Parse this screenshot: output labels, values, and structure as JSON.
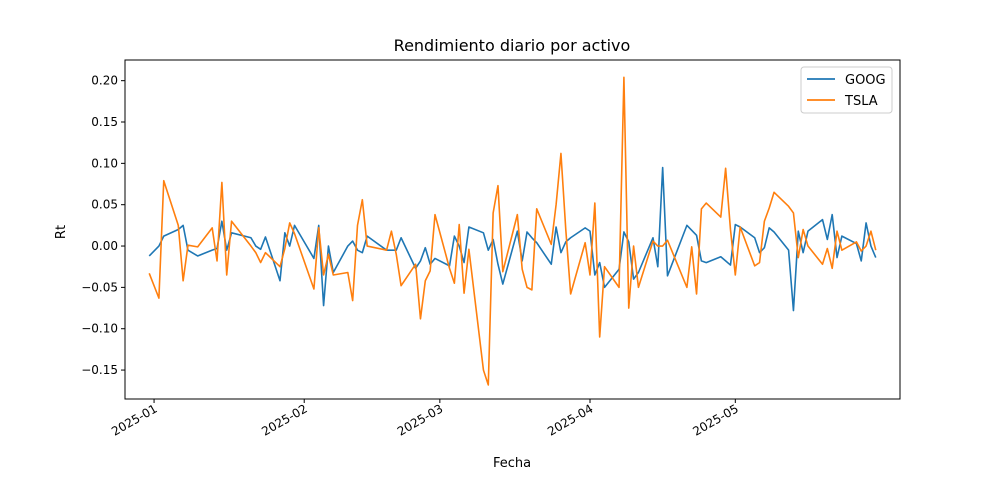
{
  "chart_data": {
    "type": "line",
    "title": "Rendimiento diario por activo",
    "xlabel": "Fecha",
    "ylabel": "Rt",
    "x_ticks": [
      "2025-01",
      "2025-02",
      "2025-03",
      "2025-04",
      "2025-05"
    ],
    "y_ticks": [
      "−0.15",
      "−0.10",
      "−0.05",
      "0.00",
      "0.05",
      "0.10",
      "0.15",
      "0.20"
    ],
    "legend_position": "top-right",
    "grid": false,
    "series": [
      {
        "name": "GOOG",
        "color": "#1f77b4",
        "points": [
          [
            "2024-12-31",
            -0.012
          ],
          [
            "2025-01-02",
            0.0
          ],
          [
            "2025-01-03",
            0.012
          ],
          [
            "2025-01-06",
            0.02
          ],
          [
            "2025-01-07",
            0.025
          ],
          [
            "2025-01-08",
            -0.005
          ],
          [
            "2025-01-10",
            -0.012
          ],
          [
            "2025-01-13",
            -0.005
          ],
          [
            "2025-01-14",
            -0.003
          ],
          [
            "2025-01-15",
            0.03
          ],
          [
            "2025-01-16",
            -0.005
          ],
          [
            "2025-01-17",
            0.016
          ],
          [
            "2025-01-21",
            0.01
          ],
          [
            "2025-01-22",
            0.0
          ],
          [
            "2025-01-23",
            -0.004
          ],
          [
            "2025-01-24",
            0.011
          ],
          [
            "2025-01-27",
            -0.042
          ],
          [
            "2025-01-28",
            0.016
          ],
          [
            "2025-01-29",
            0.0
          ],
          [
            "2025-01-30",
            0.025
          ],
          [
            "2025-02-03",
            -0.015
          ],
          [
            "2025-02-04",
            0.025
          ],
          [
            "2025-02-05",
            -0.072
          ],
          [
            "2025-02-06",
            0.0
          ],
          [
            "2025-02-07",
            -0.032
          ],
          [
            "2025-02-10",
            0.0
          ],
          [
            "2025-02-11",
            0.006
          ],
          [
            "2025-02-12",
            -0.005
          ],
          [
            "2025-02-13",
            -0.008
          ],
          [
            "2025-02-14",
            0.012
          ],
          [
            "2025-02-18",
            -0.005
          ],
          [
            "2025-02-19",
            -0.005
          ],
          [
            "2025-02-20",
            -0.005
          ],
          [
            "2025-02-21",
            0.01
          ],
          [
            "2025-02-24",
            -0.027
          ],
          [
            "2025-02-25",
            -0.018
          ],
          [
            "2025-02-26",
            -0.002
          ],
          [
            "2025-02-27",
            -0.022
          ],
          [
            "2025-02-28",
            -0.015
          ],
          [
            "2025-03-03",
            -0.024
          ],
          [
            "2025-03-04",
            0.012
          ],
          [
            "2025-03-05",
            0.0
          ],
          [
            "2025-03-06",
            -0.02
          ],
          [
            "2025-03-07",
            0.023
          ],
          [
            "2025-03-10",
            0.016
          ],
          [
            "2025-03-11",
            -0.005
          ],
          [
            "2025-03-12",
            0.008
          ],
          [
            "2025-03-13",
            -0.022
          ],
          [
            "2025-03-14",
            -0.046
          ],
          [
            "2025-03-17",
            0.018
          ],
          [
            "2025-03-18",
            -0.018
          ],
          [
            "2025-03-19",
            0.017
          ],
          [
            "2025-03-20",
            0.01
          ],
          [
            "2025-03-21",
            0.004
          ],
          [
            "2025-03-24",
            -0.022
          ],
          [
            "2025-03-25",
            0.023
          ],
          [
            "2025-03-26",
            -0.008
          ],
          [
            "2025-03-27",
            0.005
          ],
          [
            "2025-03-28",
            0.01
          ],
          [
            "2025-03-31",
            0.022
          ],
          [
            "2025-04-01",
            0.018
          ],
          [
            "2025-04-02",
            -0.035
          ],
          [
            "2025-04-03",
            -0.02
          ],
          [
            "2025-04-04",
            -0.05
          ],
          [
            "2025-04-07",
            -0.028
          ],
          [
            "2025-04-08",
            0.017
          ],
          [
            "2025-04-09",
            0.005
          ],
          [
            "2025-04-10",
            -0.04
          ],
          [
            "2025-04-11",
            -0.032
          ],
          [
            "2025-04-14",
            0.01
          ],
          [
            "2025-04-15",
            -0.025
          ],
          [
            "2025-04-16",
            0.095
          ],
          [
            "2025-04-17",
            -0.036
          ],
          [
            "2025-04-21",
            0.025
          ],
          [
            "2025-04-22",
            0.019
          ],
          [
            "2025-04-23",
            0.013
          ],
          [
            "2025-04-24",
            -0.018
          ],
          [
            "2025-04-25",
            -0.02
          ],
          [
            "2025-04-28",
            -0.013
          ],
          [
            "2025-04-29",
            -0.018
          ],
          [
            "2025-04-30",
            -0.023
          ],
          [
            "2025-05-01",
            0.026
          ],
          [
            "2025-05-02",
            0.023
          ],
          [
            "2025-05-05",
            0.01
          ],
          [
            "2025-05-06",
            -0.008
          ],
          [
            "2025-05-07",
            -0.002
          ],
          [
            "2025-05-08",
            0.022
          ],
          [
            "2025-05-09",
            0.017
          ],
          [
            "2025-05-12",
            -0.005
          ],
          [
            "2025-05-13",
            -0.078
          ],
          [
            "2025-05-14",
            0.018
          ],
          [
            "2025-05-15",
            -0.008
          ],
          [
            "2025-05-16",
            0.018
          ],
          [
            "2025-05-19",
            0.032
          ],
          [
            "2025-05-20",
            0.008
          ],
          [
            "2025-05-21",
            0.038
          ],
          [
            "2025-05-22",
            -0.014
          ],
          [
            "2025-05-23",
            0.012
          ],
          [
            "2025-05-26",
            0.003
          ],
          [
            "2025-05-27",
            -0.018
          ],
          [
            "2025-05-28",
            0.028
          ],
          [
            "2025-05-29",
            0.0
          ],
          [
            "2025-05-30",
            -0.014
          ]
        ]
      },
      {
        "name": "TSLA",
        "color": "#ff7f0e",
        "points": [
          [
            "2024-12-31",
            -0.033
          ],
          [
            "2025-01-02",
            -0.063
          ],
          [
            "2025-01-03",
            0.079
          ],
          [
            "2025-01-06",
            0.025
          ],
          [
            "2025-01-07",
            -0.042
          ],
          [
            "2025-01-08",
            0.001
          ],
          [
            "2025-01-10",
            -0.001
          ],
          [
            "2025-01-13",
            0.022
          ],
          [
            "2025-01-14",
            -0.018
          ],
          [
            "2025-01-15",
            0.077
          ],
          [
            "2025-01-16",
            -0.035
          ],
          [
            "2025-01-17",
            0.03
          ],
          [
            "2025-01-21",
            0.0
          ],
          [
            "2025-01-22",
            -0.008
          ],
          [
            "2025-01-23",
            -0.02
          ],
          [
            "2025-01-24",
            -0.008
          ],
          [
            "2025-01-27",
            -0.025
          ],
          [
            "2025-01-28",
            -0.003
          ],
          [
            "2025-01-29",
            0.028
          ],
          [
            "2025-01-30",
            0.015
          ],
          [
            "2025-02-03",
            -0.052
          ],
          [
            "2025-02-04",
            0.022
          ],
          [
            "2025-02-05",
            -0.035
          ],
          [
            "2025-02-06",
            -0.01
          ],
          [
            "2025-02-07",
            -0.035
          ],
          [
            "2025-02-10",
            -0.032
          ],
          [
            "2025-02-11",
            -0.066
          ],
          [
            "2025-02-12",
            0.025
          ],
          [
            "2025-02-13",
            0.056
          ],
          [
            "2025-02-14",
            0.0
          ],
          [
            "2025-02-18",
            -0.005
          ],
          [
            "2025-02-19",
            0.018
          ],
          [
            "2025-02-20",
            -0.01
          ],
          [
            "2025-02-21",
            -0.048
          ],
          [
            "2025-02-24",
            -0.022
          ],
          [
            "2025-02-25",
            -0.088
          ],
          [
            "2025-02-26",
            -0.042
          ],
          [
            "2025-02-27",
            -0.03
          ],
          [
            "2025-02-28",
            0.038
          ],
          [
            "2025-03-03",
            -0.027
          ],
          [
            "2025-03-04",
            -0.045
          ],
          [
            "2025-03-05",
            0.026
          ],
          [
            "2025-03-06",
            -0.057
          ],
          [
            "2025-03-07",
            -0.004
          ],
          [
            "2025-03-10",
            -0.15
          ],
          [
            "2025-03-11",
            -0.168
          ],
          [
            "2025-03-12",
            0.04
          ],
          [
            "2025-03-13",
            0.073
          ],
          [
            "2025-03-14",
            -0.031
          ],
          [
            "2025-03-17",
            0.038
          ],
          [
            "2025-03-18",
            -0.028
          ],
          [
            "2025-03-19",
            -0.05
          ],
          [
            "2025-03-20",
            -0.053
          ],
          [
            "2025-03-21",
            0.045
          ],
          [
            "2025-03-24",
            0.002
          ],
          [
            "2025-03-25",
            0.05
          ],
          [
            "2025-03-26",
            0.112
          ],
          [
            "2025-03-27",
            0.02
          ],
          [
            "2025-03-28",
            -0.058
          ],
          [
            "2025-03-31",
            0.004
          ],
          [
            "2025-04-01",
            -0.035
          ],
          [
            "2025-04-02",
            0.052
          ],
          [
            "2025-04-03",
            -0.11
          ],
          [
            "2025-04-04",
            -0.025
          ],
          [
            "2025-04-07",
            -0.05
          ],
          [
            "2025-04-08",
            0.204
          ],
          [
            "2025-04-09",
            -0.075
          ],
          [
            "2025-04-10",
            0.0
          ],
          [
            "2025-04-11",
            -0.05
          ],
          [
            "2025-04-14",
            0.006
          ],
          [
            "2025-04-15",
            0.0
          ],
          [
            "2025-04-16",
            0.0
          ],
          [
            "2025-04-17",
            0.007
          ],
          [
            "2025-04-21",
            -0.05
          ],
          [
            "2025-04-22",
            -0.001
          ],
          [
            "2025-04-23",
            -0.058
          ],
          [
            "2025-04-24",
            0.045
          ],
          [
            "2025-04-25",
            0.052
          ],
          [
            "2025-04-28",
            0.035
          ],
          [
            "2025-04-29",
            0.094
          ],
          [
            "2025-04-30",
            0.02
          ],
          [
            "2025-05-01",
            -0.035
          ],
          [
            "2025-05-02",
            0.023
          ],
          [
            "2025-05-05",
            -0.024
          ],
          [
            "2025-05-06",
            -0.02
          ],
          [
            "2025-05-07",
            0.03
          ],
          [
            "2025-05-08",
            0.046
          ],
          [
            "2025-05-09",
            0.065
          ],
          [
            "2025-05-12",
            0.048
          ],
          [
            "2025-05-13",
            0.04
          ],
          [
            "2025-05-14",
            -0.014
          ],
          [
            "2025-05-15",
            0.02
          ],
          [
            "2025-05-16",
            0.0
          ],
          [
            "2025-05-19",
            -0.022
          ],
          [
            "2025-05-20",
            -0.003
          ],
          [
            "2025-05-21",
            -0.027
          ],
          [
            "2025-05-22",
            0.018
          ],
          [
            "2025-05-23",
            -0.005
          ],
          [
            "2025-05-26",
            0.005
          ],
          [
            "2025-05-27",
            -0.006
          ],
          [
            "2025-05-28",
            0.0
          ],
          [
            "2025-05-29",
            0.018
          ],
          [
            "2025-05-30",
            -0.005
          ]
        ]
      }
    ]
  }
}
